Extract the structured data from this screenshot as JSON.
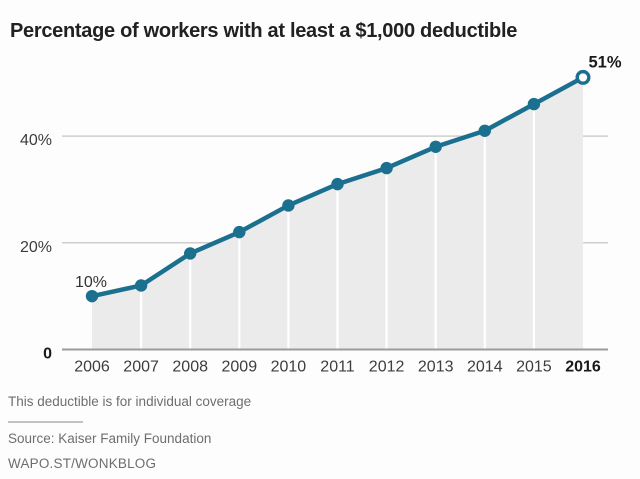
{
  "title": "Percentage of workers with at least a $1,000 deductible",
  "chart_data": {
    "type": "line",
    "title": "Percentage of workers with at least a $1,000 deductible",
    "x": [
      2006,
      2007,
      2008,
      2009,
      2010,
      2011,
      2012,
      2013,
      2014,
      2015,
      2016
    ],
    "values": [
      10,
      12,
      18,
      22,
      27,
      31,
      34,
      38,
      41,
      46,
      51
    ],
    "unit": "%",
    "ylim": [
      0,
      55
    ],
    "yticks": [
      {
        "value": 0,
        "label": "0",
        "bold": true
      },
      {
        "value": 20,
        "label": "20%",
        "bold": false
      },
      {
        "value": 40,
        "label": "40%",
        "bold": false
      }
    ],
    "grid": true,
    "area_fill": true,
    "last_point_open": true,
    "last_x_tick_bold": true,
    "legend": "none",
    "annotations": [
      {
        "x": 2006,
        "text": "10%",
        "bold": false,
        "position": "above"
      },
      {
        "x": 2016,
        "text": "51%",
        "bold": true,
        "position": "above-right"
      }
    ],
    "colors": {
      "line": "#1b7090",
      "marker": "#1b7090",
      "open_marker_fill": "#ffffff",
      "area": "#ebebeb",
      "separator": "#ffffff",
      "grid": "#cfcfcf",
      "axis": "#9b9b9b",
      "tick_label": "#3d3d3d",
      "bold_label": "#1a1a1a",
      "annotation": "#333333"
    }
  },
  "footer": {
    "note": "This deductible is for individual coverage",
    "source": "Source: Kaiser Family Foundation",
    "credit": "WAPO.ST/WONKBLOG"
  }
}
